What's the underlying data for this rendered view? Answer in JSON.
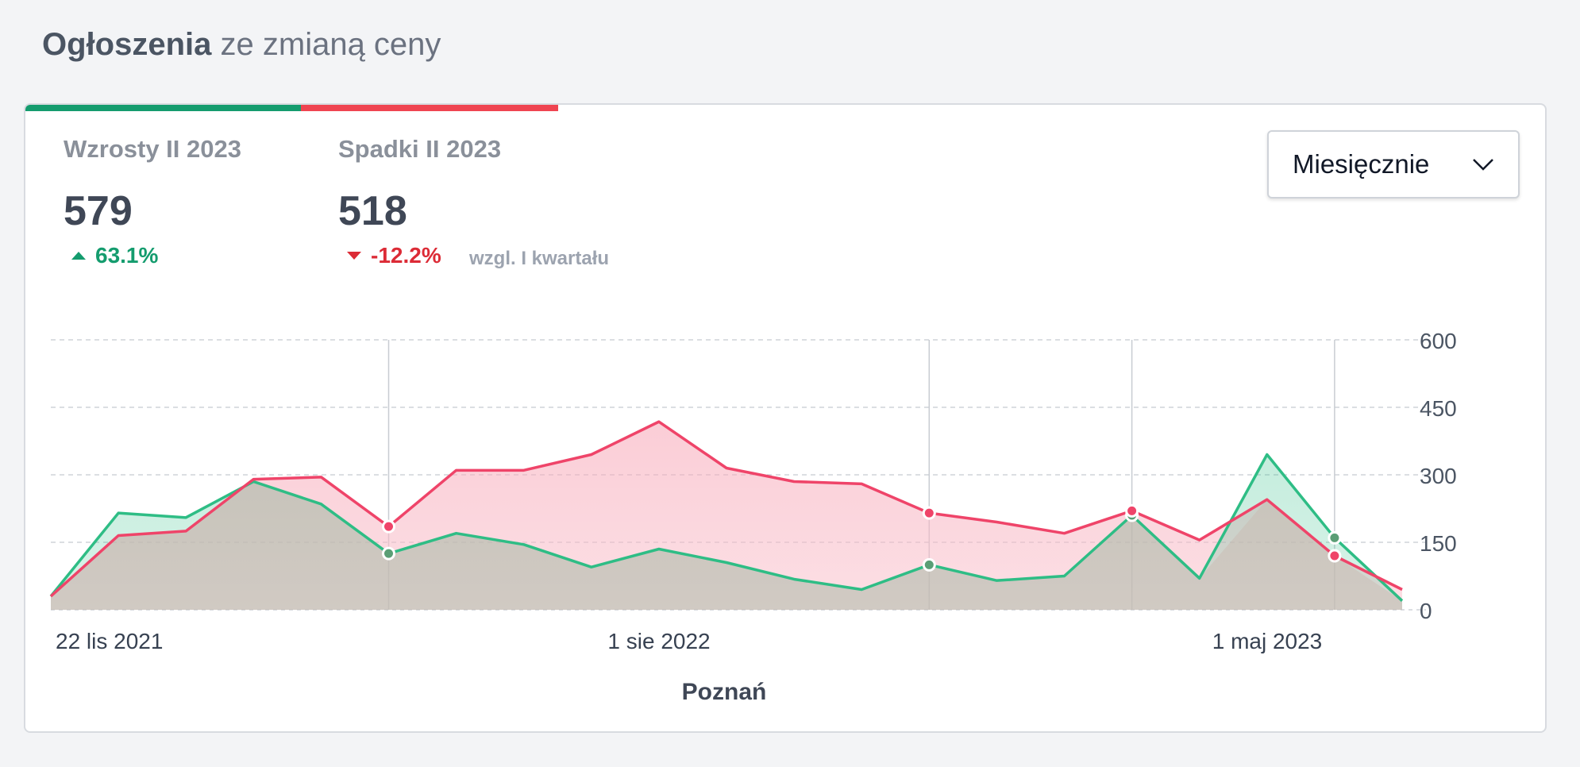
{
  "header": {
    "title_strong": "Ogłoszenia",
    "title_rest": "ze zmianą ceny"
  },
  "stats": {
    "increase": {
      "label": "Wzrosty II 2023",
      "value": "579",
      "change": "63.1%"
    },
    "decrease": {
      "label": "Spadki II 2023",
      "value": "518",
      "change": "-12.2%"
    },
    "compare_note": "wzgl. I kwartału"
  },
  "dropdown": {
    "selected": "Miesięcznie",
    "icon": "chevron-down-icon"
  },
  "colors": {
    "increase": "#2ebd85",
    "increase_line": "#5a9e75",
    "decrease": "#ef4469",
    "accent_up": "#149c6e",
    "accent_down": "#ef4451"
  },
  "chart_data": {
    "type": "area",
    "title": "Poznań",
    "x": [
      "2021-11-22",
      "2021-12-22",
      "2022-01-22",
      "2022-02-22",
      "2022-03-22",
      "2022-04-22",
      "2022-05-22",
      "2022-06-22",
      "2022-07-22",
      "2022-08-22",
      "2022-09-22",
      "2022-10-22",
      "2022-11-22",
      "2022-12-22",
      "2023-01-22",
      "2023-02-22",
      "2023-03-22",
      "2023-04-22",
      "2023-05-22",
      "2023-06-22",
      "2023-07-22"
    ],
    "x_tick_labels": [
      "22 lis 2021",
      "1 sie 2022",
      "1 maj 2023"
    ],
    "y_ticks": [
      0,
      150,
      300,
      450,
      600
    ],
    "ylim": [
      0,
      600
    ],
    "grid": true,
    "series": [
      {
        "name": "Wzrosty",
        "color": "#2ebd85",
        "values": [
          30,
          215,
          205,
          285,
          235,
          125,
          170,
          145,
          95,
          135,
          105,
          68,
          45,
          100,
          65,
          75,
          210,
          70,
          345,
          160,
          20
        ]
      },
      {
        "name": "Spadki",
        "color": "#ef4469",
        "values": [
          30,
          165,
          175,
          290,
          295,
          185,
          310,
          310,
          345,
          418,
          315,
          285,
          280,
          215,
          195,
          170,
          220,
          155,
          245,
          120,
          45
        ]
      }
    ],
    "markers": [
      {
        "index": 5
      },
      {
        "index": 13
      },
      {
        "index": 16
      },
      {
        "index": 19
      }
    ]
  }
}
